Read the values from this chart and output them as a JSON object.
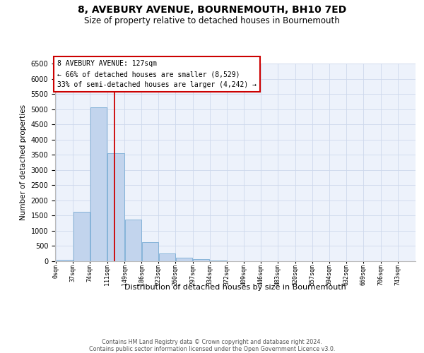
{
  "title": "8, AVEBURY AVENUE, BOURNEMOUTH, BH10 7ED",
  "subtitle": "Size of property relative to detached houses in Bournemouth",
  "xlabel": "Distribution of detached houses by size in Bournemouth",
  "ylabel": "Number of detached properties",
  "footer_line1": "Contains HM Land Registry data © Crown copyright and database right 2024.",
  "footer_line2": "Contains public sector information licensed under the Open Government Licence v3.0.",
  "annotation_title": "8 AVEBURY AVENUE: 127sqm",
  "annotation_line1": "← 66% of detached houses are smaller (8,529)",
  "annotation_line2": "33% of semi-detached houses are larger (4,242) →",
  "property_size_sqm": 127,
  "bar_color": "#c2d4ed",
  "bar_edge_color": "#7aadd4",
  "marker_line_color": "#cc0000",
  "annotation_box_edgecolor": "#cc0000",
  "grid_color": "#cdd8ec",
  "background_color": "#ffffff",
  "plot_bg_color": "#edf2fb",
  "categories": [
    "0sqm",
    "37sqm",
    "74sqm",
    "111sqm",
    "149sqm",
    "186sqm",
    "223sqm",
    "260sqm",
    "297sqm",
    "334sqm",
    "372sqm",
    "409sqm",
    "446sqm",
    "483sqm",
    "520sqm",
    "557sqm",
    "594sqm",
    "632sqm",
    "669sqm",
    "706sqm",
    "743sqm"
  ],
  "bin_edges": [
    0,
    37,
    74,
    111,
    149,
    186,
    223,
    260,
    297,
    334,
    372,
    409,
    446,
    483,
    520,
    557,
    594,
    632,
    669,
    706,
    743,
    780
  ],
  "values": [
    50,
    1620,
    5050,
    3550,
    1380,
    620,
    260,
    110,
    75,
    30,
    0,
    0,
    0,
    0,
    0,
    0,
    0,
    0,
    0,
    0,
    0
  ],
  "ylim": [
    0,
    6500
  ],
  "yticks": [
    0,
    500,
    1000,
    1500,
    2000,
    2500,
    3000,
    3500,
    4000,
    4500,
    5000,
    5500,
    6000,
    6500
  ],
  "figsize": [
    6.0,
    5.0
  ],
  "dpi": 100
}
